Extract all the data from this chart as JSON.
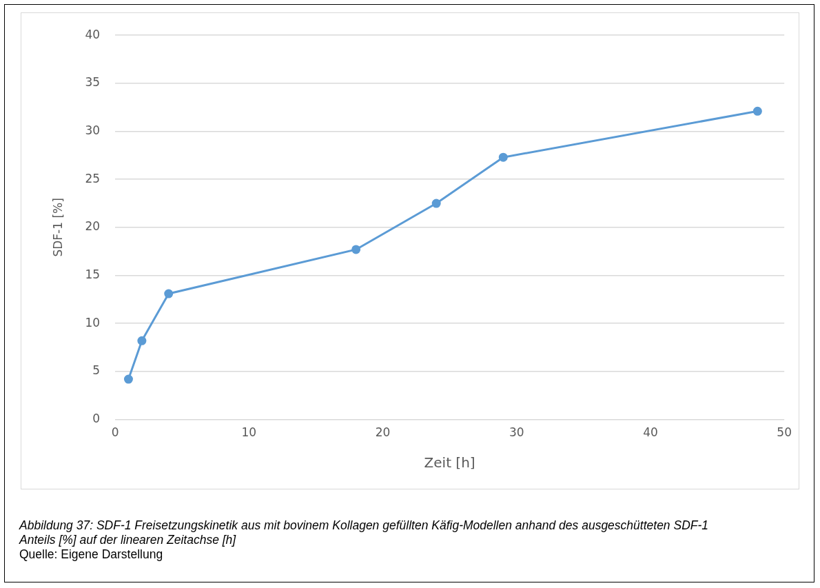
{
  "chart_data": {
    "type": "line",
    "xlabel": "Zeit [h]",
    "ylabel": "SDF-1 [%]",
    "x": [
      1,
      2,
      4,
      18,
      24,
      29,
      48
    ],
    "series": [
      {
        "color": "#5b9bd5",
        "values": [
          4.2,
          8.2,
          13.1,
          17.7,
          22.5,
          27.3,
          32.1
        ]
      }
    ],
    "xlim": [
      0,
      50
    ],
    "xticks": [
      0,
      10,
      20,
      30,
      40,
      50
    ],
    "ylim": [
      0,
      40
    ],
    "yticks": [
      0,
      5,
      10,
      15,
      20,
      25,
      30,
      35,
      40
    ],
    "grid": "y",
    "legend": false,
    "marker": "circle",
    "line_style": "solid",
    "annotations": [
      "Abbildung 37: SDF-1 Freisetzungskinetik aus mit bovinem Kollagen gefüllten Käfig-Modellen anhand des ausgeschütteten SDF-1 Anteils [%] auf der linearen Zeitachse [h]",
      "Quelle: Eigene Darstellung"
    ]
  }
}
